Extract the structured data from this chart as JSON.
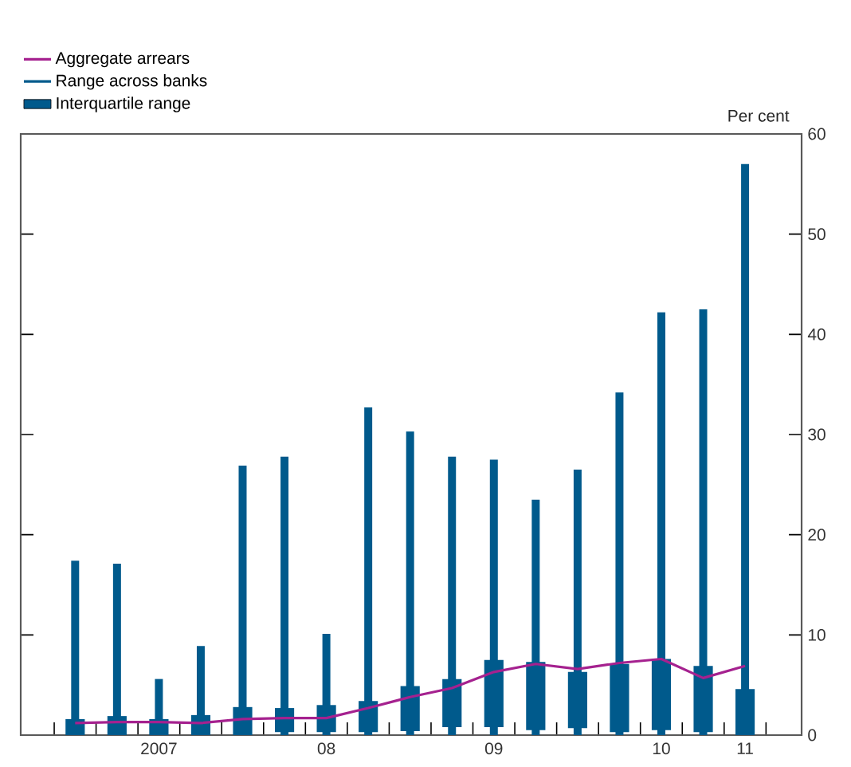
{
  "chart_data": {
    "type": "bar",
    "ylabel": "Per cent",
    "categories": [
      null,
      null,
      "2007",
      null,
      null,
      null,
      "08",
      null,
      null,
      null,
      "09",
      null,
      null,
      null,
      "10",
      null,
      "11"
    ],
    "ylim": [
      0,
      60
    ],
    "yticks": [
      0,
      10,
      20,
      30,
      40,
      50,
      60
    ],
    "legend": "top left",
    "series": [
      {
        "name": "Aggregate arrears",
        "type": "line",
        "color": "#a5218f",
        "values": [
          1.2,
          1.3,
          1.3,
          1.2,
          1.6,
          1.7,
          1.7,
          2.7,
          3.8,
          4.7,
          6.3,
          7.1,
          6.6,
          7.2,
          7.6,
          5.7,
          6.9
        ]
      },
      {
        "name": "Range across banks",
        "color": "#005a8c",
        "base": [
          0,
          0,
          0,
          0,
          0,
          0,
          0,
          0,
          0,
          0,
          0,
          0,
          0,
          0,
          0,
          0,
          0
        ],
        "values": [
          17.4,
          17.1,
          5.6,
          8.9,
          26.9,
          27.8,
          10.1,
          32.7,
          30.3,
          27.8,
          27.5,
          23.5,
          26.5,
          34.2,
          42.2,
          42.5,
          57.0
        ]
      },
      {
        "name": "Interquartile range",
        "color": "#005a8c",
        "base": [
          0,
          0,
          0,
          0,
          0,
          0.3,
          0.3,
          0.3,
          0.4,
          0.8,
          0.8,
          0.5,
          0.7,
          0.3,
          0.5,
          0.3,
          0
        ],
        "values": [
          1.6,
          1.9,
          1.6,
          2.0,
          2.8,
          2.4,
          2.7,
          3.1,
          4.5,
          4.8,
          6.7,
          6.8,
          5.6,
          6.8,
          7.1,
          6.6,
          4.6
        ]
      }
    ]
  }
}
